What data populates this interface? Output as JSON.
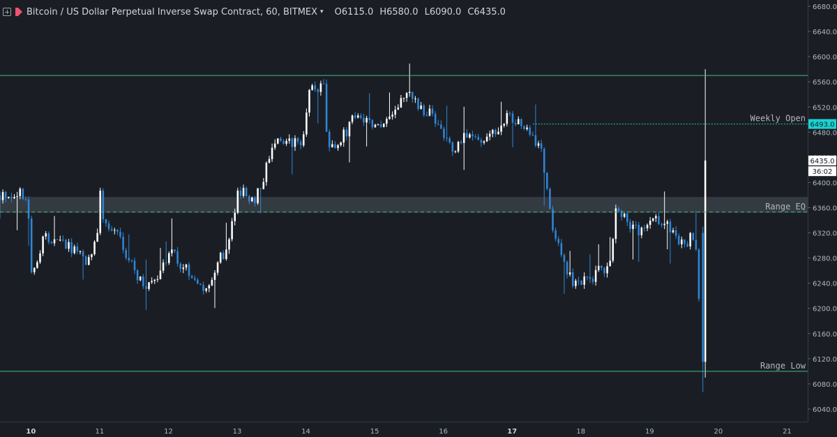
{
  "header": {
    "title": "Bitcoin / US Dollar Perpetual Inverse Swap Contract, 60, BITMEX",
    "ohlc": [
      {
        "key": "O",
        "value": "6115.0"
      },
      {
        "key": "H",
        "value": "6580.0"
      },
      {
        "key": "L",
        "value": "6090.0"
      },
      {
        "key": "C",
        "value": "6435.0"
      }
    ]
  },
  "colors": {
    "background": "#1a1e24",
    "up": "#ffffff",
    "down": "#2f86d8",
    "level_line": "#3fbf7f",
    "weekly_line": "#2ec5c5",
    "zone": "#3a3f47",
    "text": "#b2b5be"
  },
  "chart_data": {
    "type": "candlestick",
    "y_axis": {
      "side": "right",
      "range": [
        6020,
        6690
      ],
      "ticks": [
        6040,
        6080,
        6120,
        6160,
        6200,
        6240,
        6280,
        6320,
        6360,
        6400,
        6440,
        6480,
        6520,
        6560,
        6600,
        6640,
        6680
      ],
      "tick_labels": [
        "6040.0",
        "6080.0",
        "6120.0",
        "6160.0",
        "6200.0",
        "6240.0",
        "6280.0",
        "6320.0",
        "6360.0",
        "6400.0",
        "6440.0",
        "6480.0",
        "6520.0",
        "6560.0",
        "6600.0",
        "6640.0",
        "6680.0"
      ]
    },
    "x_axis": {
      "range": [
        9.55,
        21.3
      ],
      "ticks": [
        10,
        11,
        12,
        13,
        14,
        15,
        16,
        17,
        18,
        19,
        20,
        21
      ],
      "tick_labels": [
        "10",
        "11",
        "12",
        "13",
        "14",
        "15",
        "16",
        "17",
        "18",
        "19",
        "20",
        "21"
      ],
      "bold_labels": [
        "10",
        "17"
      ]
    },
    "price_labels": [
      {
        "value": 6493,
        "text": "6493.0",
        "style": "weekly"
      },
      {
        "value": 6435,
        "text": "6435.0",
        "style": "last"
      },
      {
        "value": 6418,
        "text": "36:02",
        "style": "timer"
      }
    ],
    "levels": [
      {
        "name": "",
        "value": 6570,
        "style": "solid"
      },
      {
        "name": "Weekly Open",
        "value": 6493,
        "style": "dotted",
        "x_start": 17.3
      },
      {
        "name": "Range EQ",
        "value": 6353,
        "style": "dashed"
      },
      {
        "name": "Range Low",
        "value": 6100,
        "style": "solid"
      }
    ],
    "zones": [
      {
        "from": 6352,
        "to": 6377
      }
    ],
    "anchors": [
      [
        9.55,
        6380
      ],
      [
        9.9,
        6383
      ],
      [
        10.0,
        6360
      ],
      [
        10.05,
        6250
      ],
      [
        10.2,
        6310
      ],
      [
        10.6,
        6300
      ],
      [
        10.85,
        6270
      ],
      [
        11.0,
        6320
      ],
      [
        11.05,
        6390
      ],
      [
        11.1,
        6330
      ],
      [
        11.3,
        6320
      ],
      [
        11.55,
        6260
      ],
      [
        11.7,
        6230
      ],
      [
        11.9,
        6260
      ],
      [
        12.1,
        6285
      ],
      [
        12.4,
        6250
      ],
      [
        12.55,
        6230
      ],
      [
        12.85,
        6290
      ],
      [
        12.98,
        6340
      ],
      [
        13.05,
        6390
      ],
      [
        13.3,
        6375
      ],
      [
        13.45,
        6420
      ],
      [
        13.6,
        6470
      ],
      [
        13.85,
        6460
      ],
      [
        14.0,
        6470
      ],
      [
        14.1,
        6550
      ],
      [
        14.3,
        6555
      ],
      [
        14.35,
        6440
      ],
      [
        14.55,
        6470
      ],
      [
        14.8,
        6510
      ],
      [
        15.1,
        6490
      ],
      [
        15.3,
        6520
      ],
      [
        15.5,
        6540
      ],
      [
        15.7,
        6520
      ],
      [
        15.95,
        6500
      ],
      [
        16.15,
        6450
      ],
      [
        16.35,
        6480
      ],
      [
        16.6,
        6470
      ],
      [
        16.85,
        6490
      ],
      [
        17.0,
        6505
      ],
      [
        17.15,
        6490
      ],
      [
        17.45,
        6460
      ],
      [
        17.55,
        6380
      ],
      [
        17.65,
        6320
      ],
      [
        17.8,
        6260
      ],
      [
        17.95,
        6235
      ],
      [
        18.2,
        6250
      ],
      [
        18.45,
        6270
      ],
      [
        18.55,
        6370
      ],
      [
        18.7,
        6340
      ],
      [
        18.9,
        6320
      ],
      [
        19.15,
        6340
      ],
      [
        19.3,
        6330
      ],
      [
        19.5,
        6300
      ],
      [
        19.7,
        6320
      ],
      [
        19.78,
        6150
      ],
      [
        19.82,
        6435
      ]
    ],
    "last_candles": [
      {
        "t": 19.775,
        "o": 6320,
        "h": 6330,
        "l": 6067,
        "c": 6115
      },
      {
        "t": 19.81,
        "o": 6115,
        "h": 6580,
        "l": 6090,
        "c": 6435
      }
    ]
  }
}
